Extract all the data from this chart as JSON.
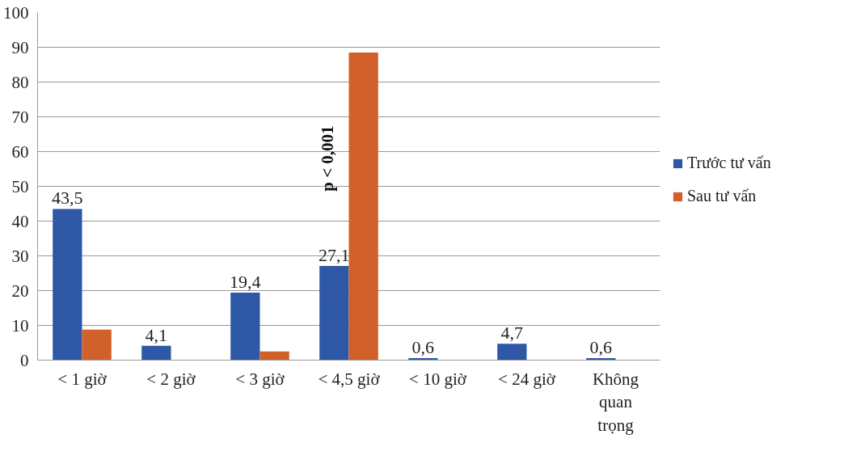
{
  "chart_data": {
    "type": "bar",
    "categories": [
      "< 1 giờ",
      "< 2 giờ",
      "< 3 giờ",
      "< 4,5 giờ",
      "< 10 giờ",
      "< 24 giờ",
      "Không quan trọng"
    ],
    "series": [
      {
        "name": "Trước tư vấn",
        "color": "#2e58a6",
        "values": [
          43.5,
          4.1,
          19.4,
          27.1,
          0.6,
          4.7,
          0.6
        ],
        "value_labels": [
          "43,5",
          "4,1",
          "19,4",
          "27,1",
          "0,6",
          "4,7",
          "0,6"
        ]
      },
      {
        "name": "Sau tư vấn",
        "color": "#d2602a",
        "values": [
          8.8,
          0,
          2.5,
          88.5,
          0,
          0,
          0
        ]
      }
    ],
    "ylim": [
      0,
      100
    ],
    "yticks": [
      0,
      10,
      20,
      30,
      40,
      50,
      60,
      70,
      80,
      90,
      100
    ],
    "grid": "y",
    "legend": "right",
    "annotations": [
      {
        "text": "p < 0,001",
        "x": "< 4,5 giờ",
        "y": 58
      }
    ]
  }
}
